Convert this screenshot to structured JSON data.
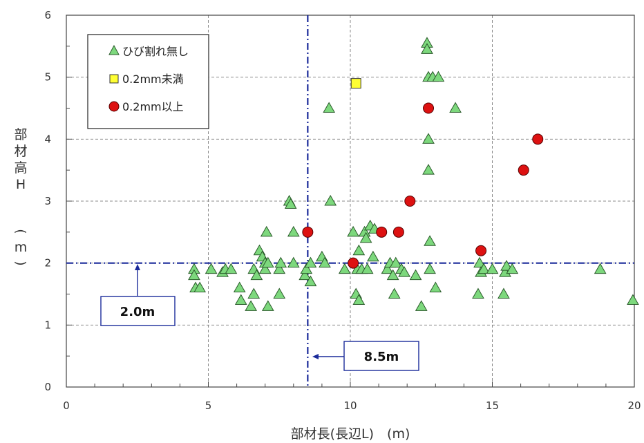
{
  "chart_data": {
    "type": "scatter",
    "xlabel": "部材長(長辺L)　(m)",
    "ylabel_chars": [
      "部",
      "材",
      "高",
      "H",
      "(",
      "m",
      ")"
    ],
    "xlim": [
      0,
      20
    ],
    "ylim": [
      0,
      6
    ],
    "x_ticks": [
      "0",
      "5",
      "10",
      "15",
      "20"
    ],
    "y_ticks": [
      "0",
      "1",
      "2",
      "3",
      "4",
      "5",
      "6"
    ],
    "grid": true,
    "legend_position": "top-left",
    "colors": {
      "triangle": "#7dd87d",
      "square": "#ffff33",
      "circle": "#dd1111",
      "ref_line": "#1a2a9a"
    },
    "reference_lines": [
      {
        "axis": "y",
        "value": 2.0,
        "label": "2.0m"
      },
      {
        "axis": "x",
        "value": 8.5,
        "label": "8.5m"
      }
    ],
    "series": [
      {
        "name": "ひび割れ無し",
        "marker": "triangle",
        "points": [
          [
            4.5,
            1.9
          ],
          [
            4.5,
            1.8
          ],
          [
            4.55,
            1.6
          ],
          [
            4.7,
            1.6
          ],
          [
            5.1,
            1.9
          ],
          [
            5.5,
            1.85
          ],
          [
            5.6,
            1.9
          ],
          [
            5.8,
            1.9
          ],
          [
            6.1,
            1.6
          ],
          [
            6.15,
            1.4
          ],
          [
            6.5,
            1.3
          ],
          [
            6.6,
            1.5
          ],
          [
            6.6,
            1.9
          ],
          [
            6.7,
            1.8
          ],
          [
            6.8,
            2.2
          ],
          [
            6.9,
            2.1
          ],
          [
            7.0,
            1.9
          ],
          [
            7.0,
            2.0
          ],
          [
            7.05,
            2.5
          ],
          [
            7.1,
            1.3
          ],
          [
            7.1,
            2.0
          ],
          [
            7.5,
            1.5
          ],
          [
            7.5,
            1.9
          ],
          [
            7.55,
            2.0
          ],
          [
            7.85,
            3.0
          ],
          [
            7.9,
            2.95
          ],
          [
            8.0,
            2.5
          ],
          [
            8.0,
            2.0
          ],
          [
            8.4,
            1.8
          ],
          [
            8.45,
            1.9
          ],
          [
            8.6,
            1.7
          ],
          [
            8.6,
            2.0
          ],
          [
            9.0,
            2.1
          ],
          [
            9.1,
            2.0
          ],
          [
            9.25,
            4.5
          ],
          [
            9.3,
            3.0
          ],
          [
            9.8,
            1.9
          ],
          [
            10.1,
            2.5
          ],
          [
            10.2,
            1.5
          ],
          [
            10.25,
            1.9
          ],
          [
            10.3,
            2.2
          ],
          [
            10.3,
            1.4
          ],
          [
            10.4,
            1.9
          ],
          [
            10.5,
            2.5
          ],
          [
            10.55,
            2.4
          ],
          [
            10.6,
            1.9
          ],
          [
            10.7,
            2.6
          ],
          [
            10.8,
            2.1
          ],
          [
            10.85,
            2.55
          ],
          [
            11.3,
            1.9
          ],
          [
            11.4,
            2.0
          ],
          [
            11.5,
            1.8
          ],
          [
            11.55,
            1.5
          ],
          [
            11.6,
            2.0
          ],
          [
            11.8,
            1.9
          ],
          [
            11.9,
            1.85
          ],
          [
            12.3,
            1.8
          ],
          [
            12.5,
            1.3
          ],
          [
            12.7,
            5.55
          ],
          [
            12.7,
            5.45
          ],
          [
            12.75,
            5.0
          ],
          [
            12.75,
            4.0
          ],
          [
            12.75,
            3.5
          ],
          [
            12.8,
            2.35
          ],
          [
            12.8,
            1.9
          ],
          [
            12.9,
            5.0
          ],
          [
            13.0,
            1.6
          ],
          [
            13.1,
            5.0
          ],
          [
            13.7,
            4.5
          ],
          [
            14.5,
            1.5
          ],
          [
            14.55,
            2.0
          ],
          [
            14.6,
            1.85
          ],
          [
            14.7,
            1.9
          ],
          [
            15.0,
            1.9
          ],
          [
            15.4,
            1.5
          ],
          [
            15.45,
            1.85
          ],
          [
            15.5,
            1.95
          ],
          [
            15.7,
            1.9
          ],
          [
            18.8,
            1.9
          ],
          [
            19.95,
            1.4
          ]
        ]
      },
      {
        "name": "0.2mm未満",
        "marker": "square",
        "points": [
          [
            10.2,
            4.9
          ]
        ]
      },
      {
        "name": "0.2mm以上",
        "marker": "circle",
        "points": [
          [
            8.5,
            2.5
          ],
          [
            10.1,
            2.0
          ],
          [
            11.1,
            2.5
          ],
          [
            11.7,
            2.5
          ],
          [
            12.1,
            3.0
          ],
          [
            12.75,
            4.5
          ],
          [
            14.6,
            2.2
          ],
          [
            16.1,
            3.5
          ],
          [
            16.6,
            4.0
          ]
        ]
      }
    ]
  }
}
